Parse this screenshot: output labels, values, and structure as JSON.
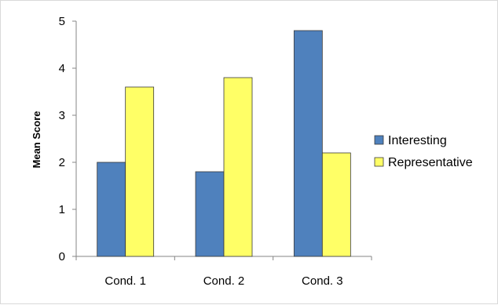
{
  "chart_data": {
    "type": "bar",
    "categories": [
      "Cond. 1",
      "Cond. 2",
      "Cond. 3"
    ],
    "series": [
      {
        "name": "Interesting",
        "values": [
          2.0,
          1.8,
          4.8
        ],
        "color": "#4f81bd"
      },
      {
        "name": "Representative",
        "values": [
          3.6,
          3.8,
          2.2
        ],
        "color": "#ffff66"
      }
    ],
    "title": "",
    "xlabel": "",
    "ylabel": "Mean Score",
    "ylim": [
      0,
      5
    ],
    "yticks": [
      0,
      1,
      2,
      3,
      4,
      5
    ],
    "grid": false,
    "legend_position": "right"
  }
}
